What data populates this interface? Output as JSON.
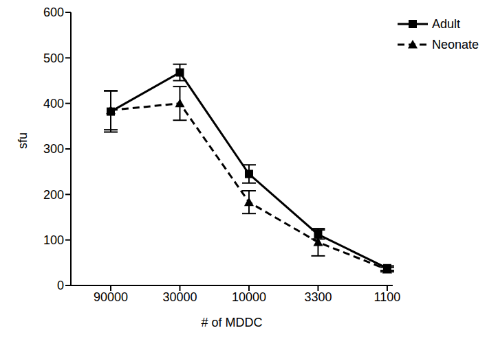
{
  "chart_data": {
    "type": "line",
    "x_label": "# of MDDC",
    "y_label": "sfu",
    "categories": [
      "90000",
      "30000",
      "10000",
      "3300",
      "1100"
    ],
    "series": [
      {
        "name": "Adult",
        "color": "#000000",
        "marker": "square",
        "line_style": "solid",
        "values": [
          382,
          468,
          245,
          112,
          38
        ],
        "errors": [
          45,
          18,
          20,
          10,
          5
        ]
      },
      {
        "name": "Neonate",
        "color": "#000000",
        "marker": "triangle",
        "line_style": "dashed",
        "values": [
          385,
          400,
          183,
          95,
          35
        ],
        "errors": [
          43,
          37,
          25,
          30,
          5
        ]
      }
    ],
    "ylim": [
      0,
      600
    ],
    "yticks": [
      0,
      100,
      200,
      300,
      400,
      500,
      600
    ],
    "legend": "upper right",
    "grid": false
  }
}
